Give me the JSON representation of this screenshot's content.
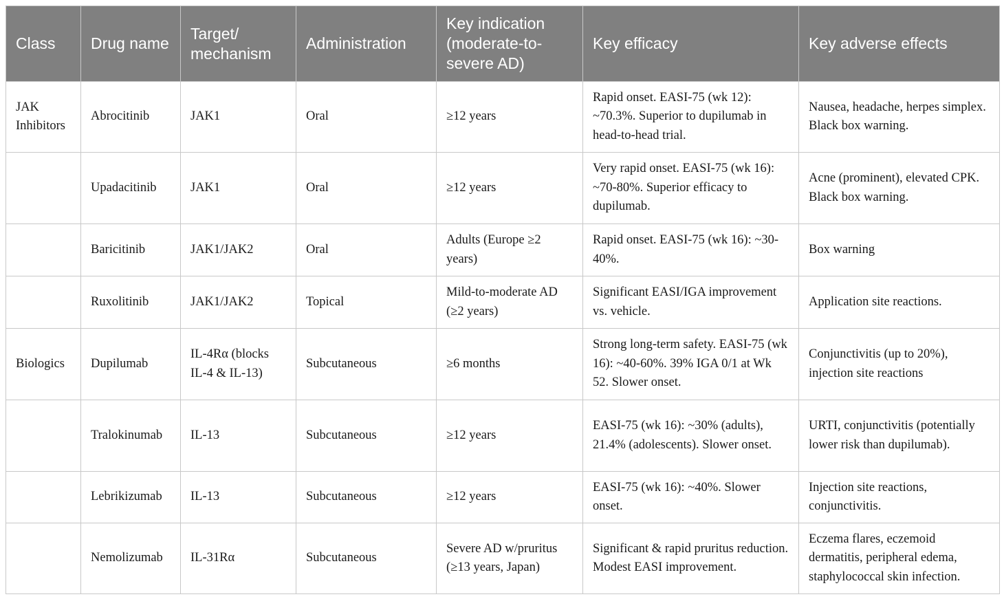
{
  "table": {
    "header": [
      "Class",
      "Drug name",
      "Target/ mechanism",
      "Administration",
      "Key indication (moderate-to-severe AD)",
      "Key efficacy",
      "Key adverse effects"
    ],
    "rows": [
      [
        "JAK Inhibitors",
        "Abrocitinib",
        "JAK1",
        "Oral",
        "≥12 years",
        "Rapid onset. EASI-75 (wk 12): ~70.3%. Superior to dupilumab in head-to-head trial.",
        "Nausea, headache, herpes simplex. Black box warning."
      ],
      [
        null,
        "Upadacitinib",
        "JAK1",
        "Oral",
        "≥12 years",
        "Very rapid onset. EASI-75 (wk 16): ~70-80%. Superior efficacy to dupilumab.",
        "Acne (prominent), elevated CPK. Black box warning."
      ],
      [
        null,
        "Baricitinib",
        "JAK1/JAK2",
        "Oral",
        "Adults (Europe ≥2 years)",
        "Rapid onset. EASI-75 (wk 16): ~30-40%.",
        "Box warning"
      ],
      [
        null,
        "Ruxolitinib",
        "JAK1/JAK2",
        "Topical",
        "Mild-to-moderate AD (≥2 years)",
        "Significant EASI/IGA improvement vs. vehicle.",
        "Application site reactions."
      ],
      [
        "Biologics",
        "Dupilumab",
        "IL-4Rα (blocks IL-4 & IL-13)",
        "Subcutaneous",
        "≥6 months",
        "Strong long-term safety. EASI-75 (wk 16): ~40-60%. 39% IGA 0/1 at Wk 52. Slower onset.",
        "Conjunctivitis (up to 20%), injection site reactions"
      ],
      [
        null,
        "Tralokinumab",
        "IL-13",
        "Subcutaneous",
        "≥12 years",
        "EASI-75 (wk 16): ~30% (adults), 21.4% (adolescents). Slower onset.",
        "URTI, conjunctivitis (potentially lower risk than dupilumab)."
      ],
      [
        null,
        "Lebrikizumab",
        "IL-13",
        "Subcutaneous",
        "≥12 years",
        "EASI-75 (wk 16): ~40%. Slower onset.",
        "Injection site reactions, conjunctivitis."
      ],
      [
        null,
        "Nemolizumab",
        "IL-31Rα",
        "Subcutaneous",
        "Severe AD w/pruritus (≥13 years, Japan)",
        "Significant & rapid pruritus reduction. Modest EASI improvement.",
        "Eczema flares, eczemoid dermatitis, peripheral edema, staphylococcal skin infection."
      ]
    ]
  }
}
